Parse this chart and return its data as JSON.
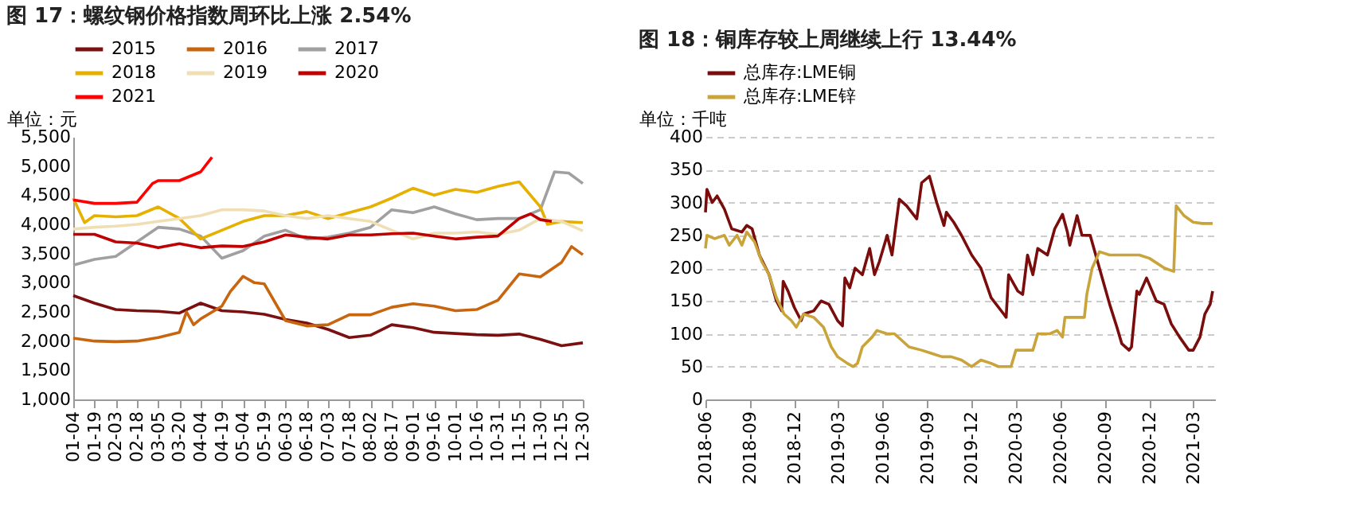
{
  "chart_data": [
    {
      "type": "line",
      "title": "图 17：螺纹钢价格指数周环比上涨 2.54%",
      "ylabel": "单位：元",
      "legend": "top",
      "grid": false,
      "marker": "none",
      "line_style": "solid",
      "xlim": [
        "--01-04",
        "--12-30"
      ],
      "xticks": [
        {
          "value": "--01-04",
          "label": "01-04"
        },
        {
          "value": "--01-19",
          "label": "01-19"
        },
        {
          "value": "--02-03",
          "label": "02-03"
        },
        {
          "value": "--02-18",
          "label": "02-18"
        },
        {
          "value": "--03-05",
          "label": "03-05"
        },
        {
          "value": "--03-20",
          "label": "03-20"
        },
        {
          "value": "--04-04",
          "label": "04-04"
        },
        {
          "value": "--04-19",
          "label": "04-19"
        },
        {
          "value": "--05-04",
          "label": "05-04"
        },
        {
          "value": "--05-19",
          "label": "05-19"
        },
        {
          "value": "--06-03",
          "label": "06-03"
        },
        {
          "value": "--06-18",
          "label": "06-18"
        },
        {
          "value": "--07-03",
          "label": "07-03"
        },
        {
          "value": "--07-18",
          "label": "07-18"
        },
        {
          "value": "--08-02",
          "label": "08-02"
        },
        {
          "value": "--08-17",
          "label": "08-17"
        },
        {
          "value": "--09-01",
          "label": "09-01"
        },
        {
          "value": "--09-16",
          "label": "09-16"
        },
        {
          "value": "--10-01",
          "label": "10-01"
        },
        {
          "value": "--10-16",
          "label": "10-16"
        },
        {
          "value": "--10-31",
          "label": "10-31"
        },
        {
          "value": "--11-15",
          "label": "11-15"
        },
        {
          "value": "--11-30",
          "label": "11-30"
        },
        {
          "value": "--12-15",
          "label": "12-15"
        },
        {
          "value": "--12-30",
          "label": "12-30"
        }
      ],
      "ylim": [
        1000,
        5500
      ],
      "yticks": [
        {
          "value": 1000,
          "label": "1,000"
        },
        {
          "value": 1500,
          "label": "1,500"
        },
        {
          "value": 2000,
          "label": "2,000"
        },
        {
          "value": 2500,
          "label": "2,500"
        },
        {
          "value": 3000,
          "label": "3,000"
        },
        {
          "value": 3500,
          "label": "3,500"
        },
        {
          "value": 4000,
          "label": "4,000"
        },
        {
          "value": 4500,
          "label": "4,500"
        },
        {
          "value": 5000,
          "label": "5,000"
        },
        {
          "value": 5500,
          "label": "5,500"
        }
      ],
      "x": [
        "--01-04",
        "--01-19",
        "--02-03",
        "--02-18",
        "--03-05",
        "--03-20",
        "--04-04",
        "--04-19",
        "--05-04",
        "--05-19",
        "--06-03",
        "--06-18",
        "--07-03",
        "--07-18",
        "--08-02",
        "--08-17",
        "--09-01",
        "--09-16",
        "--10-01",
        "--10-16",
        "--10-31",
        "--11-15",
        "--11-30",
        "--12-15",
        "--12-30"
      ],
      "series": [
        {
          "name": "2015",
          "color": "#7b1010",
          "values": [
            2780,
            2650,
            2540,
            2520,
            2510,
            2480,
            2650,
            2520,
            2500,
            2460,
            2370,
            2310,
            2200,
            2060,
            2100,
            2280,
            2230,
            2150,
            2130,
            2110,
            2100,
            2120,
            2030,
            1920,
            1970
          ]
        },
        {
          "name": "2016",
          "color": "#c8650f",
          "x": [
            "--01-04",
            "--01-19",
            "--02-03",
            "--02-18",
            "--03-05",
            "--03-20",
            "--03-25",
            "--03-30",
            "--04-04",
            "--04-19",
            "--04-25",
            "--05-04",
            "--05-12",
            "--05-19",
            "--06-03",
            "--06-18",
            "--07-03",
            "--07-18",
            "--08-02",
            "--08-17",
            "--09-01",
            "--09-16",
            "--10-01",
            "--10-16",
            "--10-31",
            "--11-15",
            "--11-30",
            "--12-15",
            "--12-22",
            "--12-30"
          ],
          "values": [
            2050,
            2000,
            1990,
            2000,
            2060,
            2150,
            2500,
            2280,
            2380,
            2600,
            2850,
            3110,
            3000,
            2980,
            2350,
            2260,
            2280,
            2450,
            2450,
            2580,
            2640,
            2600,
            2520,
            2540,
            2700,
            3150,
            3100,
            3350,
            3620,
            3480
          ]
        },
        {
          "name": "2017",
          "color": "#a0a0a0",
          "x": [
            "--01-04",
            "--01-19",
            "--02-03",
            "--02-18",
            "--03-05",
            "--03-20",
            "--04-04",
            "--04-19",
            "--05-04",
            "--05-19",
            "--06-03",
            "--06-18",
            "--07-03",
            "--07-18",
            "--08-02",
            "--08-17",
            "--09-01",
            "--09-16",
            "--10-01",
            "--10-16",
            "--10-31",
            "--11-15",
            "--11-30",
            "--12-10",
            "--12-20",
            "--12-30"
          ],
          "values": [
            3300,
            3400,
            3450,
            3700,
            3950,
            3920,
            3800,
            3420,
            3550,
            3800,
            3900,
            3750,
            3780,
            3850,
            3950,
            4250,
            4200,
            4300,
            4180,
            4080,
            4100,
            4100,
            4250,
            4900,
            4880,
            4700
          ]
        },
        {
          "name": "2018",
          "color": "#e6b000",
          "x": [
            "--01-04",
            "--01-12",
            "--01-19",
            "--02-03",
            "--02-18",
            "--03-05",
            "--03-20",
            "--04-04",
            "--04-19",
            "--05-04",
            "--05-19",
            "--06-03",
            "--06-18",
            "--07-03",
            "--07-18",
            "--08-02",
            "--08-17",
            "--09-01",
            "--09-16",
            "--10-01",
            "--10-16",
            "--10-31",
            "--11-15",
            "--11-30",
            "--12-05",
            "--12-15",
            "--12-30"
          ],
          "values": [
            4450,
            4030,
            4150,
            4130,
            4150,
            4300,
            4100,
            3750,
            3900,
            4050,
            4150,
            4150,
            4220,
            4100,
            4200,
            4300,
            4450,
            4620,
            4500,
            4600,
            4550,
            4650,
            4730,
            4300,
            4000,
            4050,
            4030
          ]
        },
        {
          "name": "2019",
          "color": "#f0dfb5",
          "values": [
            3920,
            3950,
            3970,
            4000,
            4050,
            4100,
            4150,
            4250,
            4250,
            4230,
            4150,
            4100,
            4150,
            4100,
            4050,
            3900,
            3750,
            3850,
            3850,
            3870,
            3830,
            3900,
            4100,
            4050,
            3890
          ]
        },
        {
          "name": "2020",
          "color": "#c00000",
          "x": [
            "--01-04",
            "--01-19",
            "--02-03",
            "--02-18",
            "--03-05",
            "--03-20",
            "--04-04",
            "--04-19",
            "--05-04",
            "--05-19",
            "--06-03",
            "--06-18",
            "--07-03",
            "--07-18",
            "--08-02",
            "--08-17",
            "--09-01",
            "--09-16",
            "--10-01",
            "--10-16",
            "--10-31",
            "--11-15",
            "--11-23",
            "--11-30",
            "--12-08"
          ],
          "values": [
            3830,
            3830,
            3700,
            3680,
            3600,
            3670,
            3600,
            3630,
            3620,
            3700,
            3820,
            3780,
            3750,
            3820,
            3820,
            3840,
            3850,
            3800,
            3750,
            3780,
            3800,
            4100,
            4180,
            4080,
            4050
          ]
        },
        {
          "name": "2021",
          "color": "#ff0000",
          "x": [
            "--01-04",
            "--01-19",
            "--02-03",
            "--02-18",
            "--03-01",
            "--03-05",
            "--03-20",
            "--04-04",
            "--04-12"
          ],
          "values": [
            4420,
            4360,
            4360,
            4380,
            4700,
            4750,
            4750,
            4900,
            5150
          ]
        }
      ]
    },
    {
      "type": "line",
      "title": "图 18：铜库存较上周继续上行 13.44%",
      "ylabel": "单位：千吨",
      "legend": "top",
      "grid": "y",
      "marker": "none",
      "line_style": "solid",
      "xlim": [
        "2018-06-01",
        "2021-04-15"
      ],
      "xticks": [
        "2018-06",
        "2018-09",
        "2018-12",
        "2019-03",
        "2019-06",
        "2019-09",
        "2019-12",
        "2020-03",
        "2020-06",
        "2020-09",
        "2020-12",
        "2021-03"
      ],
      "ylim": [
        0,
        400
      ],
      "yticks": [
        0,
        50,
        100,
        150,
        200,
        250,
        300,
        350,
        400
      ],
      "series": [
        {
          "name": "总库存:LME铜",
          "color": "#7a0c0c",
          "x": [
            "2018-06-01",
            "2018-06-04",
            "2018-06-15",
            "2018-06-25",
            "2018-07-10",
            "2018-07-25",
            "2018-08-15",
            "2018-08-25",
            "2018-09-05",
            "2018-09-20",
            "2018-10-10",
            "2018-10-25",
            "2018-11-05",
            "2018-11-08",
            "2018-11-18",
            "2018-12-01",
            "2018-12-15",
            "2018-12-20",
            "2019-01-10",
            "2019-01-25",
            "2019-02-10",
            "2019-02-28",
            "2019-03-10",
            "2019-03-15",
            "2019-03-25",
            "2019-04-05",
            "2019-04-20",
            "2019-05-05",
            "2019-05-15",
            "2019-05-25",
            "2019-06-10",
            "2019-06-20",
            "2019-07-05",
            "2019-07-20",
            "2019-08-10",
            "2019-08-20",
            "2019-09-05",
            "2019-09-20",
            "2019-10-05",
            "2019-10-10",
            "2019-10-25",
            "2019-11-10",
            "2019-12-01",
            "2019-12-20",
            "2020-01-10",
            "2020-02-05",
            "2020-02-10",
            "2020-02-15",
            "2020-03-05",
            "2020-03-15",
            "2020-03-25",
            "2020-04-05",
            "2020-04-15",
            "2020-05-05",
            "2020-05-20",
            "2020-06-05",
            "2020-06-15",
            "2020-06-20",
            "2020-07-05",
            "2020-07-15",
            "2020-08-01",
            "2020-08-20",
            "2020-09-10",
            "2020-09-25",
            "2020-10-05",
            "2020-10-20",
            "2020-10-25",
            "2020-11-05",
            "2020-11-10",
            "2020-11-25",
            "2020-12-15",
            "2020-12-31",
            "2021-01-15",
            "2021-02-01",
            "2021-02-20",
            "2021-03-01",
            "2021-03-15",
            "2021-03-25",
            "2021-04-05",
            "2021-04-10"
          ],
          "values": [
            285,
            320,
            300,
            310,
            290,
            260,
            255,
            265,
            260,
            220,
            190,
            150,
            135,
            180,
            165,
            140,
            120,
            130,
            135,
            150,
            145,
            120,
            112,
            185,
            170,
            200,
            190,
            230,
            190,
            210,
            250,
            220,
            305,
            295,
            275,
            330,
            340,
            300,
            265,
            285,
            270,
            250,
            220,
            200,
            155,
            130,
            125,
            190,
            165,
            160,
            220,
            190,
            230,
            220,
            260,
            282,
            255,
            235,
            280,
            250,
            250,
            200,
            145,
            110,
            85,
            75,
            80,
            165,
            160,
            185,
            150,
            145,
            115,
            95,
            75,
            75,
            95,
            130,
            145,
            165
          ]
        },
        {
          "name": "总库存:LME锌",
          "color": "#c9a43a",
          "x": [
            "2018-06-01",
            "2018-06-04",
            "2018-06-20",
            "2018-07-10",
            "2018-07-20",
            "2018-08-05",
            "2018-08-15",
            "2018-08-25",
            "2018-09-10",
            "2018-09-25",
            "2018-10-10",
            "2018-10-25",
            "2018-11-10",
            "2018-11-25",
            "2018-12-05",
            "2018-12-20",
            "2019-01-10",
            "2019-01-30",
            "2019-02-15",
            "2019-02-28",
            "2019-03-20",
            "2019-04-01",
            "2019-04-10",
            "2019-04-20",
            "2019-05-10",
            "2019-05-20",
            "2019-06-10",
            "2019-06-25",
            "2019-07-10",
            "2019-07-25",
            "2019-08-20",
            "2019-09-10",
            "2019-10-01",
            "2019-10-20",
            "2019-11-10",
            "2019-12-01",
            "2019-12-20",
            "2020-01-10",
            "2020-01-25",
            "2020-02-10",
            "2020-02-20",
            "2020-03-01",
            "2020-03-20",
            "2020-04-05",
            "2020-04-15",
            "2020-05-10",
            "2020-05-25",
            "2020-06-05",
            "2020-06-10",
            "2020-07-01",
            "2020-07-20",
            "2020-07-25",
            "2020-08-05",
            "2020-08-20",
            "2020-09-10",
            "2020-10-10",
            "2020-11-10",
            "2020-12-01",
            "2021-01-01",
            "2021-01-20",
            "2021-01-25",
            "2021-02-10",
            "2021-03-01",
            "2021-03-20",
            "2021-04-10"
          ],
          "values": [
            230,
            250,
            245,
            250,
            235,
            250,
            235,
            255,
            240,
            210,
            190,
            155,
            130,
            120,
            110,
            130,
            125,
            110,
            80,
            65,
            55,
            50,
            55,
            80,
            95,
            105,
            100,
            100,
            90,
            80,
            75,
            70,
            65,
            65,
            60,
            50,
            60,
            55,
            50,
            50,
            50,
            75,
            75,
            75,
            100,
            100,
            105,
            95,
            125,
            125,
            125,
            160,
            200,
            225,
            220,
            220,
            220,
            215,
            200,
            195,
            295,
            280,
            270,
            268,
            268
          ]
        }
      ]
    }
  ]
}
